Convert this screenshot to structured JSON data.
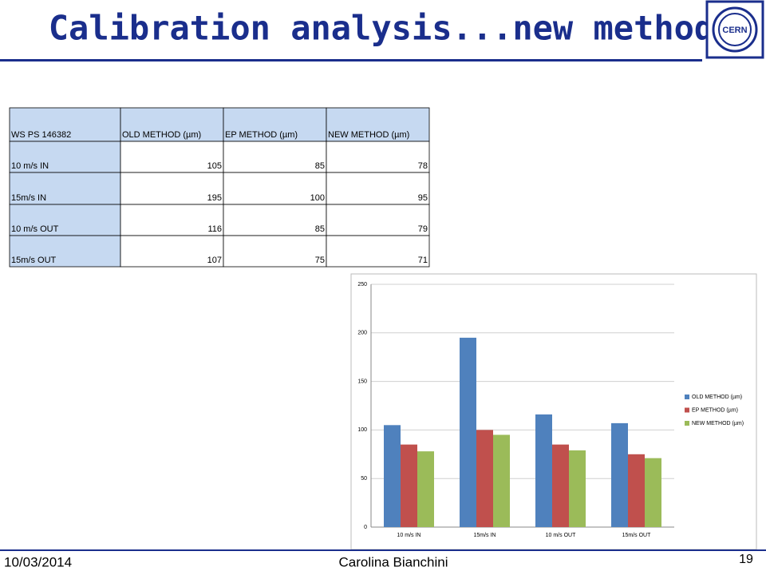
{
  "header": {
    "title": "Calibration analysis...new method",
    "logo": "CERN"
  },
  "table": {
    "columns": [
      "WS PS 146382",
      "OLD METHOD (µm)",
      "EP METHOD (µm)",
      "NEW METHOD (µm)"
    ],
    "rows": [
      [
        "10 m/s IN",
        105,
        85,
        78
      ],
      [
        "15m/s IN",
        195,
        100,
        95
      ],
      [
        "10 m/s OUT",
        116,
        85,
        79
      ],
      [
        "15m/s OUT",
        107,
        75,
        71
      ]
    ]
  },
  "chart_data": {
    "type": "bar",
    "categories": [
      "10 m/s IN",
      "15m/s IN",
      "10 m/s OUT",
      "15m/s OUT"
    ],
    "series": [
      {
        "name": "OLD METHOD (µm)",
        "color": "#4f81bd",
        "values": [
          105,
          195,
          116,
          107
        ]
      },
      {
        "name": "EP METHOD (µm)",
        "color": "#c0504d",
        "values": [
          85,
          100,
          85,
          75
        ]
      },
      {
        "name": "NEW METHOD (µm)",
        "color": "#9bbb59",
        "values": [
          78,
          95,
          79,
          71
        ]
      }
    ],
    "ylim": [
      0,
      250
    ],
    "yticks": [
      0,
      50,
      100,
      150,
      200,
      250
    ],
    "grid": true,
    "legend": "right"
  },
  "footer": {
    "date": "10/03/2014",
    "author": "Carolina Bianchini",
    "page": "19"
  }
}
